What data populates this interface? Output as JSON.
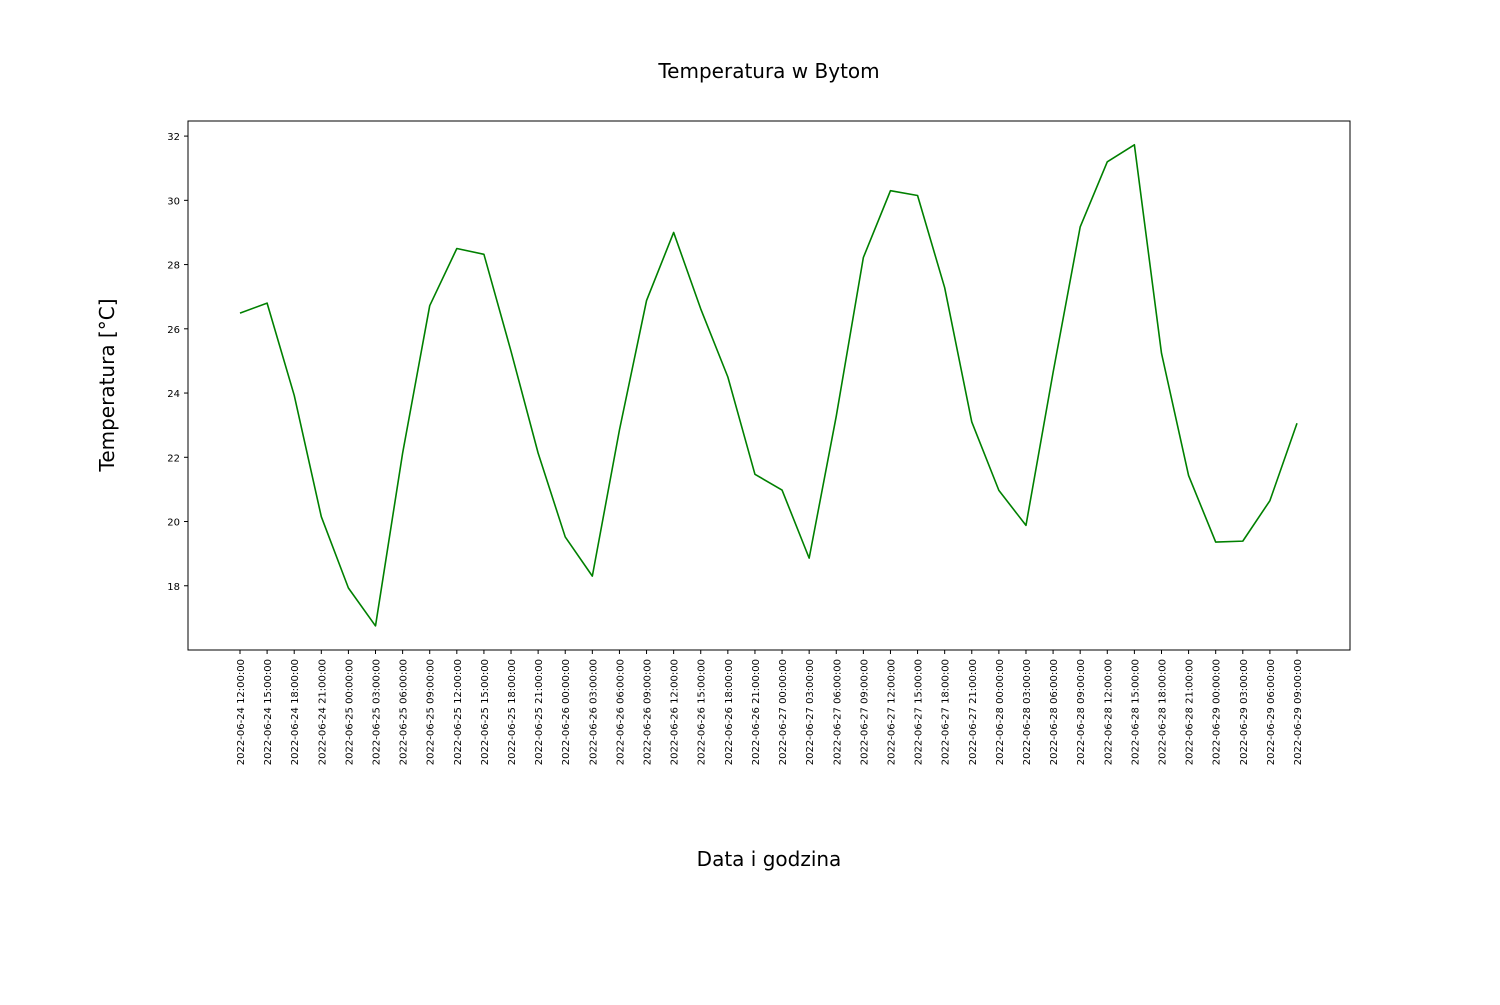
{
  "chart_data": {
    "type": "line",
    "title": "Temperatura w Bytom",
    "xlabel": "Data i godzina",
    "ylabel": "Temperatura [°C]",
    "ylim": [
      16.0,
      32.47
    ],
    "yticks": [
      18,
      20,
      22,
      24,
      26,
      28,
      30,
      32
    ],
    "grid": false,
    "legend": "none",
    "line_color": "#008000",
    "x": [
      "2022-06-24 12:00:00",
      "2022-06-24 15:00:00",
      "2022-06-24 18:00:00",
      "2022-06-24 21:00:00",
      "2022-06-25 00:00:00",
      "2022-06-25 03:00:00",
      "2022-06-25 06:00:00",
      "2022-06-25 09:00:00",
      "2022-06-25 12:00:00",
      "2022-06-25 15:00:00",
      "2022-06-25 18:00:00",
      "2022-06-25 21:00:00",
      "2022-06-26 00:00:00",
      "2022-06-26 03:00:00",
      "2022-06-26 06:00:00",
      "2022-06-26 09:00:00",
      "2022-06-26 12:00:00",
      "2022-06-26 15:00:00",
      "2022-06-26 18:00:00",
      "2022-06-26 21:00:00",
      "2022-06-27 00:00:00",
      "2022-06-27 03:00:00",
      "2022-06-27 06:00:00",
      "2022-06-27 09:00:00",
      "2022-06-27 12:00:00",
      "2022-06-27 15:00:00",
      "2022-06-27 18:00:00",
      "2022-06-27 21:00:00",
      "2022-06-28 00:00:00",
      "2022-06-28 03:00:00",
      "2022-06-28 06:00:00",
      "2022-06-28 09:00:00",
      "2022-06-28 12:00:00",
      "2022-06-28 15:00:00",
      "2022-06-28 18:00:00",
      "2022-06-28 21:00:00",
      "2022-06-29 00:00:00",
      "2022-06-29 03:00:00",
      "2022-06-29 06:00:00",
      "2022-06-29 09:00:00"
    ],
    "series": [
      {
        "values": [
          26.49,
          26.8,
          23.93,
          20.15,
          17.93,
          16.75,
          22.13,
          26.72,
          28.5,
          28.32,
          25.3,
          22.13,
          19.52,
          18.3,
          22.85,
          26.88,
          29.0,
          26.62,
          24.5,
          21.47,
          20.98,
          18.86,
          23.28,
          28.22,
          30.3,
          30.15,
          27.28,
          23.1,
          20.97,
          19.88,
          24.64,
          29.17,
          31.2,
          31.73,
          25.24,
          21.43,
          19.36,
          19.39,
          20.65,
          23.06
        ]
      }
    ]
  }
}
